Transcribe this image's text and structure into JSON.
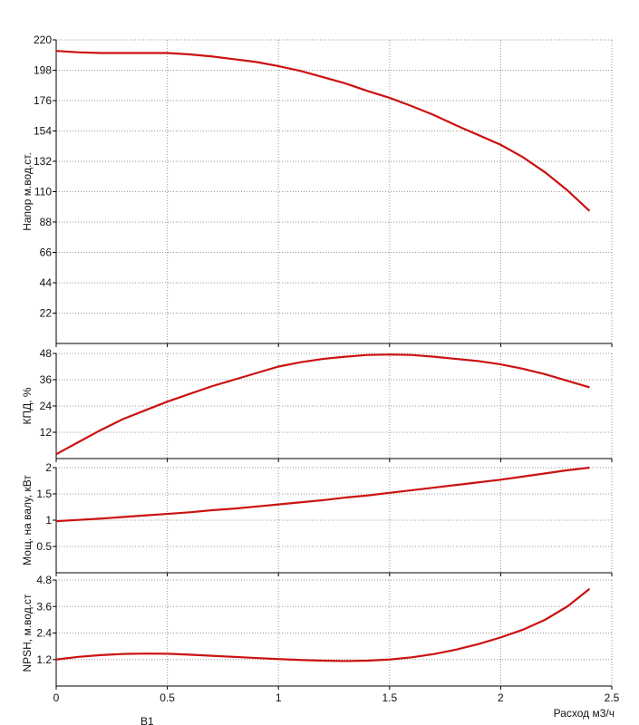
{
  "chart_data": [
    {
      "type": "line",
      "ylabel": "Напор м.вод.ст.",
      "x": [
        0,
        0.1,
        0.2,
        0.3,
        0.4,
        0.5,
        0.6,
        0.7,
        0.8,
        0.9,
        1.0,
        1.1,
        1.2,
        1.3,
        1.4,
        1.5,
        1.6,
        1.7,
        1.8,
        1.9,
        2.0,
        2.1,
        2.2,
        2.3,
        2.4
      ],
      "series": [
        {
          "name": "Напор",
          "color": "#cc1111",
          "values": [
            212,
            211,
            210.5,
            210.5,
            210.5,
            210.5,
            209.5,
            208,
            206,
            204,
            201,
            197.5,
            193,
            188.5,
            183,
            178,
            172,
            165.5,
            158,
            151,
            144,
            135,
            124,
            111,
            96
          ]
        }
      ],
      "xlim": [
        0,
        2.5
      ],
      "xticks": [
        0,
        0.5,
        1,
        1.5,
        2,
        2.5
      ],
      "ylim": [
        0,
        220
      ],
      "yticks": [
        22,
        44,
        66,
        88,
        110,
        132,
        154,
        176,
        198,
        220
      ],
      "grid": true
    },
    {
      "type": "line",
      "ylabel": "КПД, %",
      "x": [
        0,
        0.1,
        0.2,
        0.3,
        0.4,
        0.5,
        0.6,
        0.7,
        0.8,
        0.9,
        1.0,
        1.1,
        1.2,
        1.3,
        1.4,
        1.5,
        1.6,
        1.7,
        1.8,
        1.9,
        2.0,
        2.1,
        2.2,
        2.3,
        2.4
      ],
      "series": [
        {
          "name": "КПД",
          "color": "#cc1111",
          "values": [
            2,
            7.5,
            13,
            18,
            22,
            26,
            29.5,
            33,
            36,
            39,
            42,
            44,
            45.5,
            46.5,
            47.3,
            47.5,
            47.3,
            46.5,
            45.5,
            44.5,
            43,
            41,
            38.5,
            35.5,
            32.5
          ]
        }
      ],
      "xlim": [
        0,
        2.5
      ],
      "xticks": [
        0,
        0.5,
        1,
        1.5,
        2,
        2.5
      ],
      "ylim": [
        0,
        48
      ],
      "yticks": [
        12,
        24,
        36,
        48
      ],
      "grid": true
    },
    {
      "type": "line",
      "ylabel": "Мощ. на валу, кВт",
      "x": [
        0,
        0.1,
        0.2,
        0.3,
        0.4,
        0.5,
        0.6,
        0.7,
        0.8,
        0.9,
        1.0,
        1.1,
        1.2,
        1.3,
        1.4,
        1.5,
        1.6,
        1.7,
        1.8,
        1.9,
        2.0,
        2.1,
        2.2,
        2.3,
        2.4
      ],
      "series": [
        {
          "name": "Мощность",
          "color": "#cc1111",
          "values": [
            0.98,
            1.005,
            1.03,
            1.06,
            1.09,
            1.12,
            1.15,
            1.19,
            1.22,
            1.26,
            1.3,
            1.34,
            1.38,
            1.43,
            1.47,
            1.52,
            1.57,
            1.62,
            1.67,
            1.72,
            1.77,
            1.83,
            1.89,
            1.95,
            2.0
          ]
        }
      ],
      "xlim": [
        0,
        2.5
      ],
      "xticks": [
        0,
        0.5,
        1,
        1.5,
        2,
        2.5
      ],
      "ylim": [
        0,
        2
      ],
      "yticks": [
        0.5,
        1,
        1.5,
        2
      ],
      "grid": true
    },
    {
      "type": "line",
      "ylabel": "NPSH, м.вод.ст",
      "xlabel": "Расход м3/ч",
      "note": "B1",
      "x": [
        0,
        0.1,
        0.2,
        0.3,
        0.4,
        0.5,
        0.6,
        0.7,
        0.8,
        0.9,
        1.0,
        1.1,
        1.2,
        1.3,
        1.4,
        1.5,
        1.6,
        1.7,
        1.8,
        1.9,
        2.0,
        2.1,
        2.2,
        2.3,
        2.4
      ],
      "series": [
        {
          "name": "NPSH",
          "color": "#cc1111",
          "values": [
            1.2,
            1.32,
            1.4,
            1.45,
            1.47,
            1.46,
            1.42,
            1.37,
            1.32,
            1.27,
            1.22,
            1.18,
            1.15,
            1.13,
            1.15,
            1.2,
            1.3,
            1.45,
            1.65,
            1.9,
            2.2,
            2.55,
            3.0,
            3.6,
            4.4
          ]
        }
      ],
      "xlim": [
        0,
        2.5
      ],
      "xticks": [
        0,
        0.5,
        1,
        1.5,
        2,
        2.5
      ],
      "ylim": [
        0,
        4.8
      ],
      "yticks": [
        1.2,
        2.4,
        3.6,
        4.8
      ],
      "grid": true
    }
  ]
}
